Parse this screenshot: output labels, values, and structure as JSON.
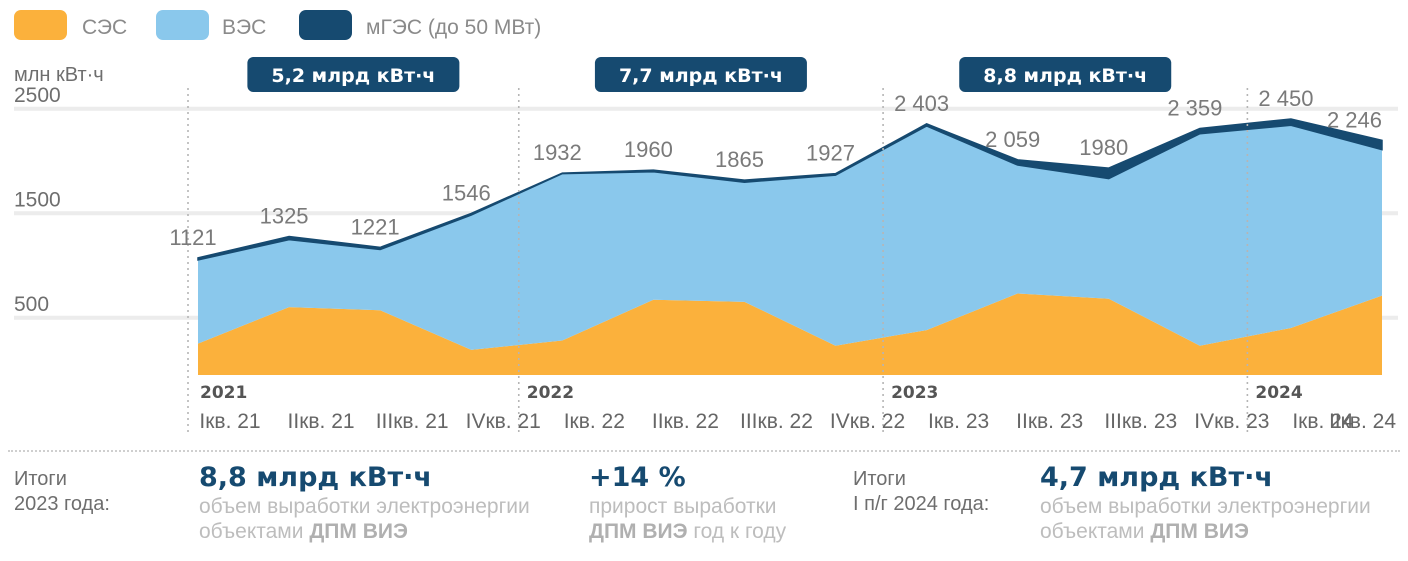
{
  "legend": [
    {
      "key": "ses",
      "label": "СЭС",
      "color": "#fbb13c"
    },
    {
      "key": "ves",
      "label": "ВЭС",
      "color": "#8ac8ec"
    },
    {
      "key": "mges",
      "label": "мГЭС (до 50 МВт)",
      "color": "#164a70"
    }
  ],
  "chart_data": {
    "type": "area",
    "stacked": true,
    "ylabel": "млн кВт·ч",
    "ylim": [
      0,
      2700
    ],
    "yticks": [
      500,
      1500,
      2500
    ],
    "grid": true,
    "years": [
      {
        "label": "2021",
        "start_index": 0
      },
      {
        "label": "2022",
        "start_index": 4
      },
      {
        "label": "2023",
        "start_index": 8
      },
      {
        "label": "2024",
        "start_index": 12
      }
    ],
    "categories": [
      "Iкв. 21",
      "IIкв. 21",
      "IIIкв. 21",
      "IVкв. 21",
      "Iкв. 22",
      "IIкв. 22",
      "IIIкв. 22",
      "IVкв. 22",
      "Iкв. 23",
      "IIкв. 23",
      "IIIкв. 23",
      "IVкв. 23",
      "Iкв. 24",
      "IIкв. 24"
    ],
    "series": [
      {
        "name": "СЭС",
        "values": [
          300,
          650,
          620,
          240,
          330,
          720,
          700,
          280,
          430,
          780,
          730,
          280,
          450,
          760
        ]
      },
      {
        "name": "ВЭС",
        "values": [
          801,
          645,
          581,
          1291,
          1597,
          1225,
          1145,
          1632,
          1953,
          1229,
          1150,
          2029,
          1940,
          1396
        ]
      },
      {
        "name": "мГЭС (до 50 МВт)",
        "values": [
          20,
          30,
          20,
          15,
          5,
          15,
          20,
          15,
          20,
          50,
          100,
          50,
          60,
          90
        ]
      }
    ],
    "totals": [
      1121,
      1325,
      1221,
      1546,
      1932,
      1960,
      1865,
      1927,
      2403,
      2059,
      1980,
      2359,
      2450,
      2246
    ],
    "total_labels": [
      "1121",
      "1325",
      "1221",
      "1546",
      "1932",
      "1960",
      "1865",
      "1927",
      "2 403",
      "2 059",
      "1980",
      "2 359",
      "2 450",
      "2 246"
    ],
    "annual_totals": [
      "5,2 млрд кВт·ч",
      "7,7 млрд кВт·ч",
      "8,8 млрд кВт·ч"
    ]
  },
  "summary": {
    "left": {
      "label": "Итоги\n2023 года:",
      "value": "8,8 млрд кВт·ч",
      "desc_pre": "объем выработки электроэнергии объектами ",
      "desc_bold": "ДПМ ВИЭ"
    },
    "middle": {
      "value": "+14 %",
      "desc_pre": "прирост выработки ",
      "desc_bold": "ДПМ ВИЭ",
      "desc_post": " год к году"
    },
    "right": {
      "label": "Итоги\nI п/г 2024 года:",
      "value": "4,7 млрд кВт·ч",
      "desc_pre": "объем выработки электроэнергии объектами ",
      "desc_bold": "ДПМ ВИЭ"
    }
  }
}
